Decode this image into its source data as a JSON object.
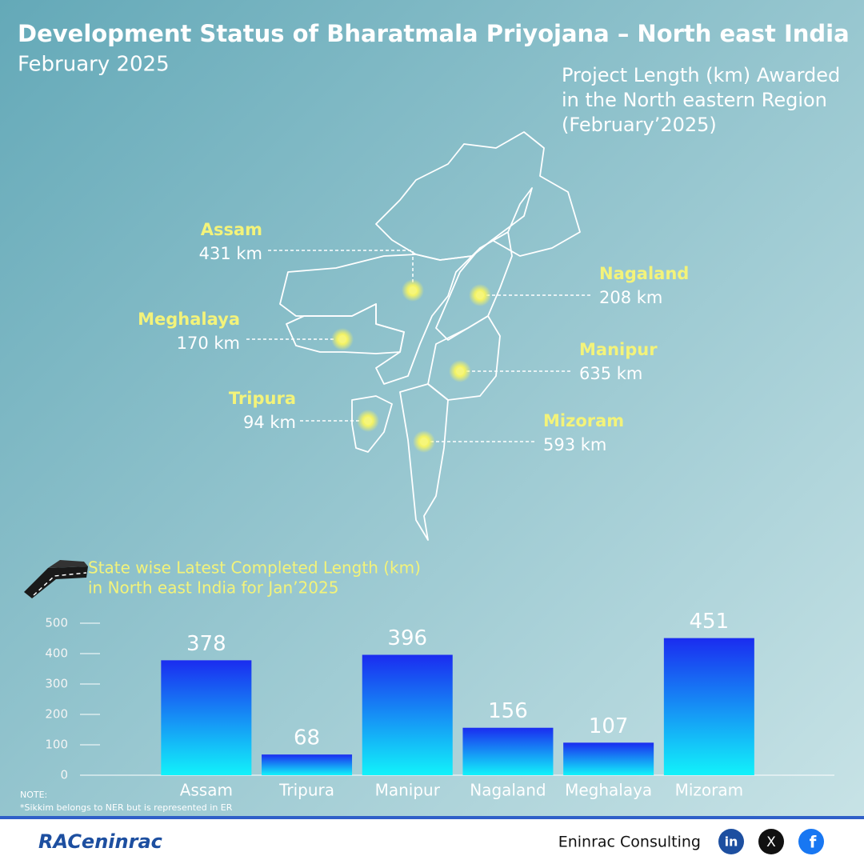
{
  "header": {
    "title": "Development Status of Bharatmala Priyojana – North east India",
    "subtitle": "February 2025"
  },
  "map": {
    "title": [
      "Project  Length (km) Awarded",
      "in the North eastern Region",
      "(February’2025)"
    ],
    "states": [
      {
        "name": "Assam",
        "label": "431 km"
      },
      {
        "name": "Nagaland",
        "label": "208 km"
      },
      {
        "name": "Meghalaya",
        "label": "170 km"
      },
      {
        "name": "Manipur",
        "label": "635 km"
      },
      {
        "name": "Tripura",
        "label": "94 km"
      },
      {
        "name": "Mizoram",
        "label": "593 km"
      }
    ]
  },
  "chart_data": {
    "type": "bar",
    "title": [
      "State wise Latest Completed Length (km)",
      "in North east India for Jan’2025"
    ],
    "categories": [
      "Assam",
      "Tripura",
      "Manipur",
      "Nagaland",
      "Meghalaya",
      "Mizoram"
    ],
    "values": [
      378,
      68,
      396,
      156,
      107,
      451
    ],
    "ylim": [
      0,
      500
    ],
    "yticks": [
      0,
      100,
      200,
      300,
      400,
      500
    ],
    "color": [
      "#1a2cf0",
      "#12f2fa"
    ]
  },
  "note": {
    "heading": "NOTE:",
    "text": "*Sikkim belongs to NER but is represented in ER"
  },
  "footer": {
    "logo": "RACeninrac",
    "company": "Eninrac Consulting",
    "social": [
      "in",
      "X",
      "f"
    ]
  }
}
